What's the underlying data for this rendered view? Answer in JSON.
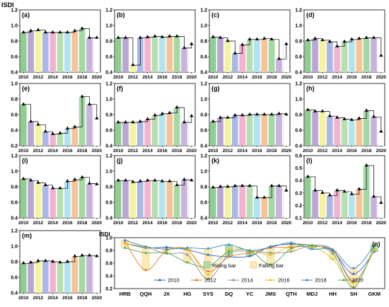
{
  "y_axis_label": "ISDI",
  "years": [
    "2010",
    "2011",
    "2012",
    "2013",
    "2014",
    "2015",
    "2016",
    "2017",
    "2018",
    "2019",
    "2020"
  ],
  "year_ticks": [
    "2010",
    "2012",
    "2014",
    "2016",
    "2018",
    "2020"
  ],
  "year_colors": [
    "#8fce8f",
    "#b9a6d6",
    "#f3f3a0",
    "#a8b9e6",
    "#f3b3cf",
    "#b7e0b0",
    "#b2e3f0",
    "#f7c397",
    "#a3d9a3",
    "#c7b3dd",
    "#ffffff"
  ],
  "panels": [
    {
      "label": "(a)",
      "ylim": [
        0.4,
        1.2
      ],
      "yticks": [
        0.4,
        0.6,
        0.8,
        1.0,
        1.2
      ],
      "values": [
        0.91,
        0.93,
        0.94,
        0.91,
        0.91,
        0.91,
        0.91,
        0.93,
        0.96,
        0.84,
        0.84
      ]
    },
    {
      "label": "(b)",
      "ylim": [
        0.4,
        1.2
      ],
      "yticks": [
        0.4,
        0.6,
        0.8,
        1.0,
        1.2
      ],
      "values": [
        0.84,
        0.84,
        0.49,
        0.84,
        0.85,
        0.86,
        0.85,
        0.86,
        0.86,
        0.71,
        0.76
      ]
    },
    {
      "label": "(c)",
      "ylim": [
        0.4,
        1.2
      ],
      "yticks": [
        0.4,
        0.6,
        0.8,
        1.0,
        1.2
      ],
      "values": [
        0.85,
        0.84,
        0.8,
        0.64,
        0.75,
        0.82,
        0.82,
        0.83,
        0.82,
        0.57,
        0.76
      ]
    },
    {
      "label": "(d)",
      "ylim": [
        0.4,
        1.2
      ],
      "yticks": [
        0.4,
        0.6,
        0.8,
        1.0,
        1.2
      ],
      "values": [
        0.81,
        0.83,
        0.81,
        0.79,
        0.73,
        0.79,
        0.82,
        0.83,
        0.84,
        0.84,
        0.61
      ]
    },
    {
      "label": "(e)",
      "ylim": [
        0.2,
        1.0
      ],
      "yticks": [
        0.2,
        0.4,
        0.6,
        0.8,
        1.0
      ],
      "values": [
        0.73,
        0.51,
        0.47,
        0.38,
        0.35,
        0.36,
        0.42,
        0.44,
        0.83,
        0.73,
        0.55
      ]
    },
    {
      "label": "(f)",
      "ylim": [
        0.4,
        1.2
      ],
      "yticks": [
        0.4,
        0.6,
        0.8,
        1.0,
        1.2
      ],
      "values": [
        0.7,
        0.7,
        0.7,
        0.71,
        0.74,
        0.79,
        0.81,
        0.82,
        0.89,
        0.7,
        0.78
      ]
    },
    {
      "label": "(g)",
      "ylim": [
        0.4,
        1.2
      ],
      "yticks": [
        0.4,
        0.6,
        0.8,
        1.0,
        1.2
      ],
      "values": [
        0.71,
        0.76,
        0.76,
        0.79,
        0.79,
        0.8,
        0.8,
        0.8,
        0.8,
        0.81,
        0.8
      ]
    },
    {
      "label": "(h)",
      "ylim": [
        0.4,
        1.2
      ],
      "yticks": [
        0.4,
        0.6,
        0.8,
        1.0,
        1.2
      ],
      "values": [
        0.86,
        0.84,
        0.84,
        0.78,
        0.76,
        0.74,
        0.73,
        0.75,
        0.85,
        0.77,
        0.58
      ]
    },
    {
      "label": "(i)",
      "ylim": [
        0.4,
        1.2
      ],
      "yticks": [
        0.4,
        0.6,
        0.8,
        1.0,
        1.2
      ],
      "values": [
        0.9,
        0.88,
        0.85,
        0.82,
        0.78,
        0.78,
        0.87,
        0.89,
        0.92,
        0.84,
        0.83
      ]
    },
    {
      "label": "(j)",
      "ylim": [
        0.4,
        1.2
      ],
      "yticks": [
        0.4,
        0.6,
        0.8,
        1.0,
        1.2
      ],
      "values": [
        0.88,
        0.88,
        0.86,
        0.87,
        0.88,
        0.88,
        0.87,
        0.87,
        0.82,
        0.89,
        0.88
      ]
    },
    {
      "label": "(k)",
      "ylim": [
        0.4,
        1.2
      ],
      "yticks": [
        0.4,
        0.6,
        0.8,
        1.0,
        1.2
      ],
      "values": [
        0.79,
        0.8,
        0.8,
        0.81,
        0.81,
        0.81,
        0.66,
        0.66,
        0.81,
        0.81,
        0.75
      ]
    },
    {
      "label": "(l)",
      "ylim": [
        0.1,
        0.6
      ],
      "yticks": [
        0.1,
        0.2,
        0.3,
        0.4,
        0.5,
        0.6
      ],
      "values": [
        0.43,
        0.32,
        0.3,
        0.28,
        0.32,
        0.31,
        0.29,
        0.33,
        0.52,
        0.27,
        0.22
      ]
    },
    {
      "label": "(m)",
      "ylim": [
        0.4,
        1.2
      ],
      "yticks": [
        0.4,
        0.6,
        0.8,
        1.0,
        1.2
      ],
      "values": [
        0.78,
        0.79,
        0.81,
        0.81,
        0.8,
        0.79,
        0.8,
        0.87,
        0.88,
        0.88,
        0.87
      ]
    }
  ],
  "chart_data": {
    "type": "line",
    "label": "(n)",
    "ylabel": "ISDI",
    "ylim": [
      0.2,
      1.0
    ],
    "yticks": [
      0.2,
      0.4,
      0.6,
      0.8,
      1.0
    ],
    "categories": [
      "HRB",
      "QQH",
      "JX",
      "HG",
      "SYS",
      "DQ",
      "YC",
      "JMS",
      "QTH",
      "MDJ",
      "HH",
      "SH",
      "GKM"
    ],
    "series": [
      {
        "name": "2010",
        "color": "#2e5fbf",
        "values": [
          0.91,
          0.84,
          0.85,
          0.81,
          0.73,
          0.7,
          0.71,
          0.86,
          0.9,
          0.88,
          0.79,
          0.43,
          0.78
        ]
      },
      {
        "name": "2012",
        "color": "#e07b2a",
        "values": [
          0.94,
          0.49,
          0.8,
          0.81,
          0.47,
          0.7,
          0.76,
          0.84,
          0.85,
          0.86,
          0.8,
          0.3,
          0.81
        ]
      },
      {
        "name": "2014",
        "color": "#8c8c8c",
        "values": [
          0.91,
          0.85,
          0.75,
          0.73,
          0.35,
          0.74,
          0.79,
          0.76,
          0.78,
          0.88,
          0.81,
          0.32,
          0.8
        ]
      },
      {
        "name": "2016",
        "color": "#e8c020",
        "values": [
          0.91,
          0.85,
          0.82,
          0.82,
          0.42,
          0.81,
          0.8,
          0.73,
          0.87,
          0.87,
          0.66,
          0.29,
          0.8
        ]
      },
      {
        "name": "2018",
        "color": "#3a86c8",
        "values": [
          0.96,
          0.86,
          0.82,
          0.84,
          0.83,
          0.89,
          0.8,
          0.85,
          0.92,
          0.82,
          0.81,
          0.52,
          0.88
        ]
      },
      {
        "name": "2020",
        "color": "#52a852",
        "values": [
          0.84,
          0.76,
          0.76,
          0.61,
          0.55,
          0.78,
          0.8,
          0.58,
          0.83,
          0.88,
          0.75,
          0.22,
          0.87
        ]
      }
    ],
    "box_legend": [
      {
        "label": "Rising bar",
        "color": "#b3dca3"
      },
      {
        "label": "Falling bar",
        "color": "#fde9b6"
      }
    ]
  }
}
